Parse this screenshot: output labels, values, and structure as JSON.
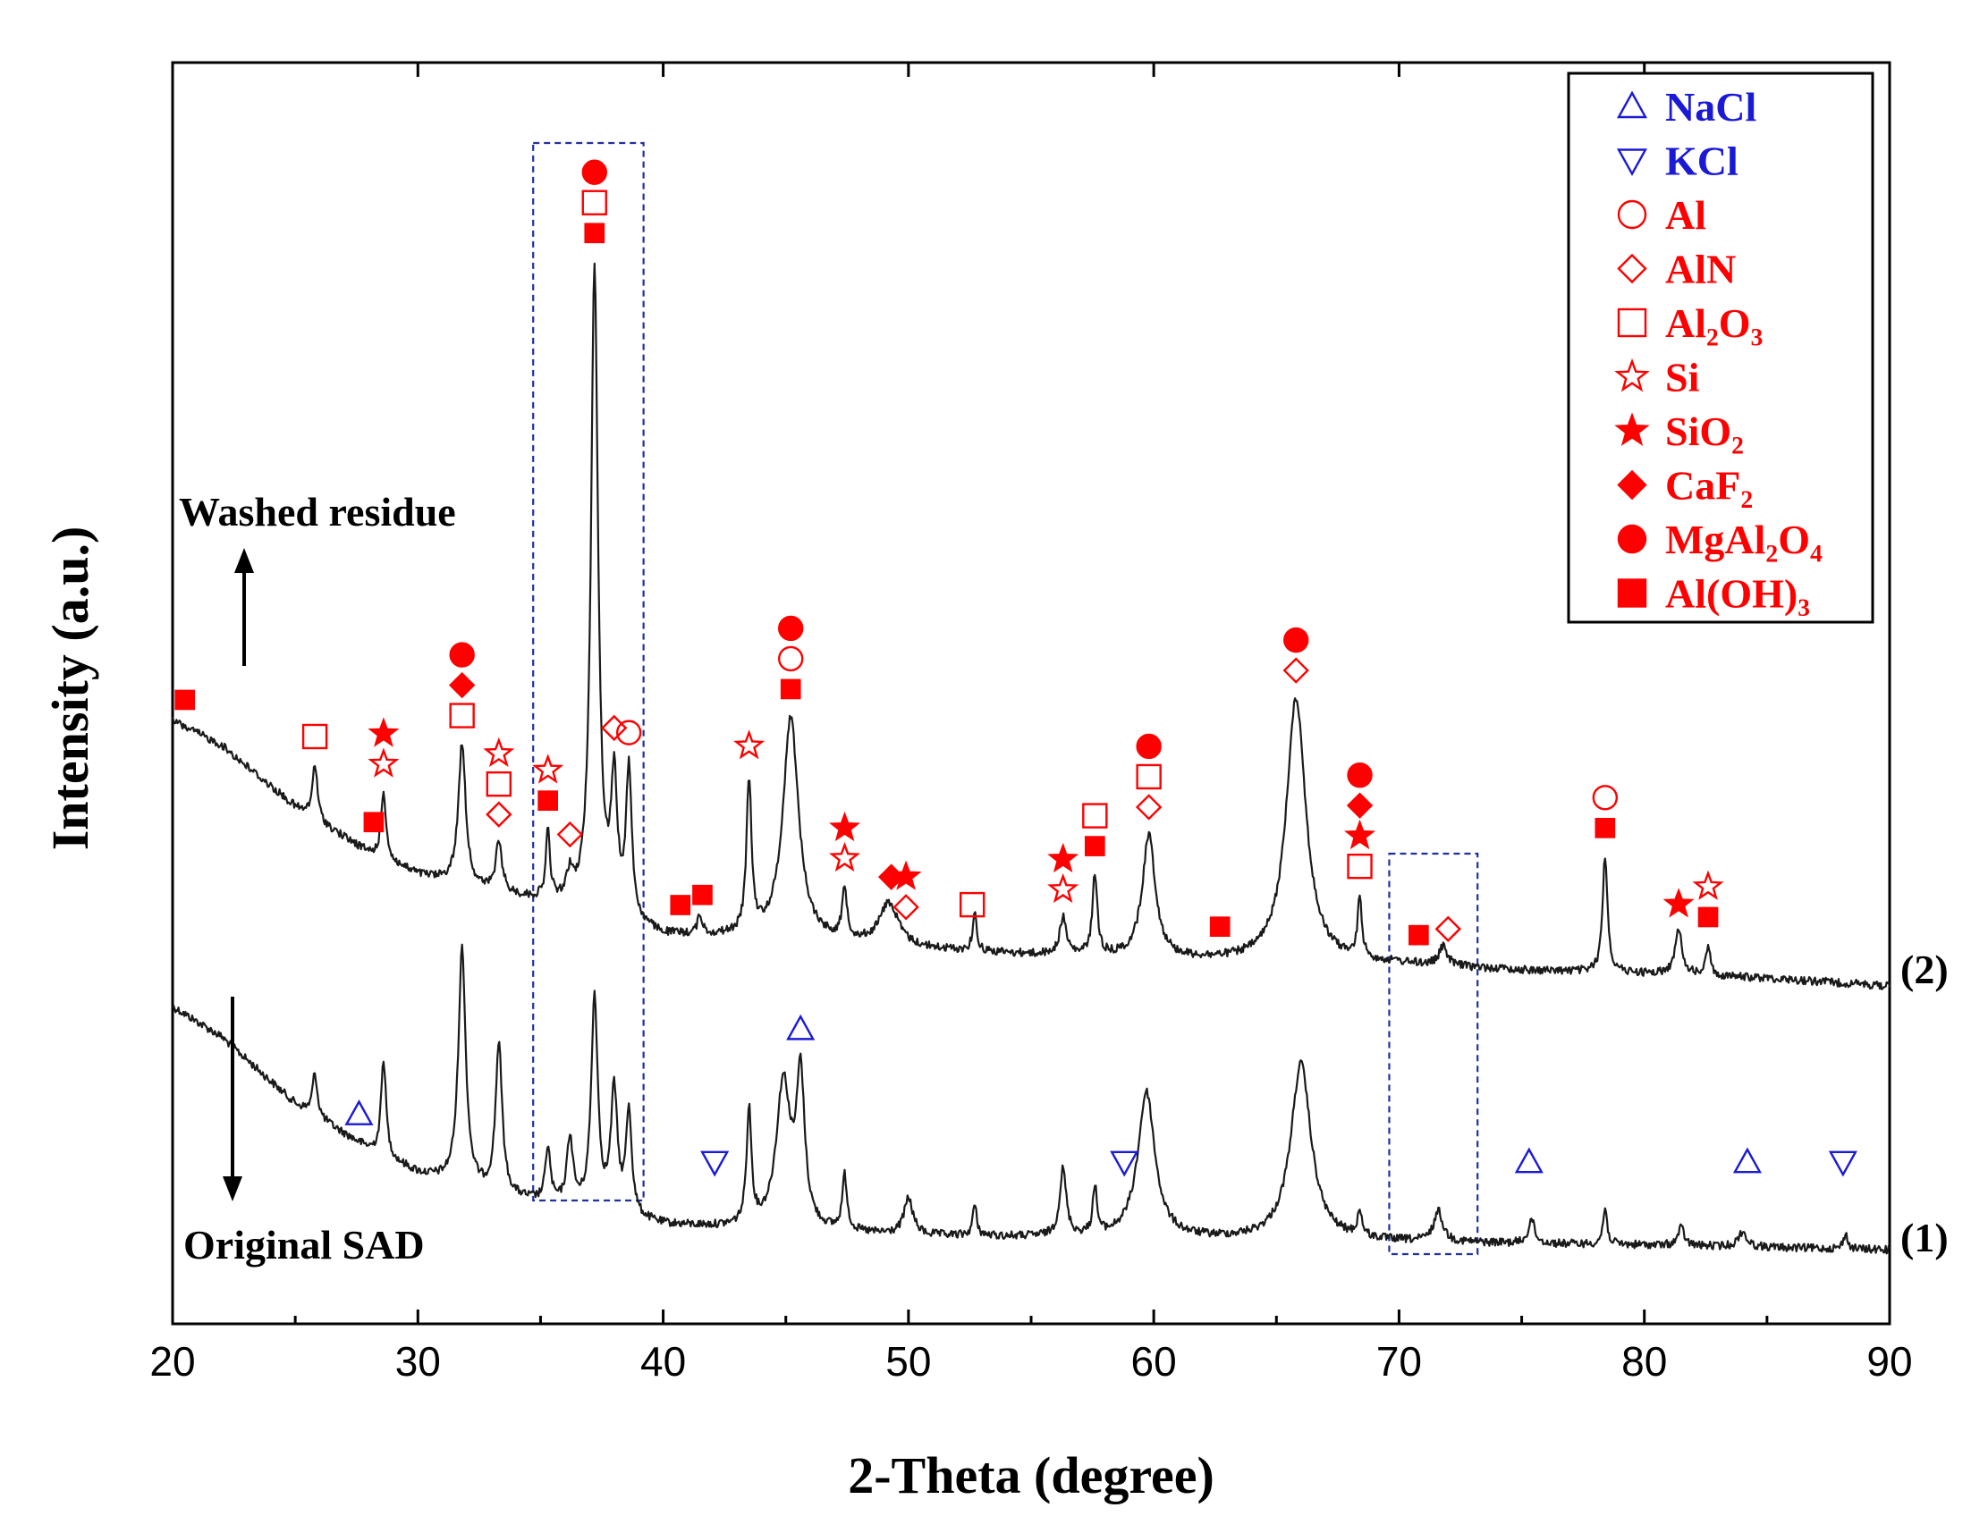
{
  "chart_data": {
    "type": "line",
    "xlabel": "2-Theta (degree)",
    "ylabel": "Intensity (a.u.)",
    "xlim": [
      20,
      90
    ],
    "xticks": [
      20,
      30,
      40,
      50,
      60,
      70,
      80,
      90
    ],
    "yticks_shown": false,
    "colors": {
      "trace": "#1a1a1a",
      "red": "#ff0000",
      "blue": "#1a1ad6",
      "box": "#2030a0"
    },
    "series": [
      {
        "name": "Original SAD",
        "id": "(1)",
        "background": [
          [
            20,
            0.82
          ],
          [
            22,
            0.72
          ],
          [
            25,
            0.5
          ],
          [
            28,
            0.35
          ],
          [
            30,
            0.27
          ],
          [
            33,
            0.2
          ],
          [
            36,
            0.16
          ],
          [
            40,
            0.1
          ],
          [
            45,
            0.08
          ],
          [
            50,
            0.065
          ],
          [
            60,
            0.055
          ],
          [
            70,
            0.045
          ],
          [
            80,
            0.035
          ],
          [
            90,
            0.02
          ]
        ],
        "peaks": [
          [
            25.8,
            0.14,
            0.12
          ],
          [
            28.6,
            0.32,
            0.12
          ],
          [
            31.8,
            0.78,
            0.18
          ],
          [
            33.3,
            0.5,
            0.16
          ],
          [
            35.3,
            0.18,
            0.12
          ],
          [
            36.2,
            0.22,
            0.15
          ],
          [
            37.2,
            0.7,
            0.16
          ],
          [
            38.0,
            0.4,
            0.16
          ],
          [
            38.6,
            0.34,
            0.14
          ],
          [
            43.5,
            0.38,
            0.12
          ],
          [
            44.9,
            0.48,
            0.35
          ],
          [
            45.6,
            0.48,
            0.2
          ],
          [
            47.4,
            0.18,
            0.12
          ],
          [
            50.0,
            0.12,
            0.22
          ],
          [
            52.7,
            0.1,
            0.1
          ],
          [
            56.3,
            0.22,
            0.16
          ],
          [
            57.6,
            0.16,
            0.1
          ],
          [
            59.7,
            0.48,
            0.42
          ],
          [
            66.0,
            0.58,
            0.5
          ],
          [
            68.4,
            0.08,
            0.12
          ],
          [
            71.6,
            0.1,
            0.22
          ],
          [
            75.4,
            0.08,
            0.15
          ],
          [
            78.4,
            0.12,
            0.1
          ],
          [
            81.5,
            0.06,
            0.15
          ],
          [
            84.0,
            0.05,
            0.2
          ],
          [
            88.2,
            0.05,
            0.1
          ]
        ]
      },
      {
        "name": "Washed residue",
        "id": "(2)",
        "background": [
          [
            20,
            0.88
          ],
          [
            22,
            0.8
          ],
          [
            25,
            0.6
          ],
          [
            28,
            0.45
          ],
          [
            30,
            0.38
          ],
          [
            33,
            0.32
          ],
          [
            36,
            0.28
          ],
          [
            40,
            0.18
          ],
          [
            45,
            0.17
          ],
          [
            50,
            0.14
          ],
          [
            55,
            0.12
          ],
          [
            60,
            0.105
          ],
          [
            65,
            0.095
          ],
          [
            70,
            0.09
          ],
          [
            75,
            0.07
          ],
          [
            80,
            0.06
          ],
          [
            85,
            0.045
          ],
          [
            90,
            0.02
          ]
        ],
        "peaks": [
          [
            25.8,
            0.18,
            0.12
          ],
          [
            28.6,
            0.22,
            0.12
          ],
          [
            31.8,
            0.46,
            0.18
          ],
          [
            33.3,
            0.16,
            0.16
          ],
          [
            35.3,
            0.22,
            0.1
          ],
          [
            36.2,
            0.08,
            0.15
          ],
          [
            37.2,
            2.1,
            0.17
          ],
          [
            38.0,
            0.42,
            0.15
          ],
          [
            38.6,
            0.48,
            0.14
          ],
          [
            41.5,
            0.06,
            0.12
          ],
          [
            43.5,
            0.5,
            0.12
          ],
          [
            45.2,
            0.72,
            0.38
          ],
          [
            47.4,
            0.16,
            0.12
          ],
          [
            49.2,
            0.14,
            0.45
          ],
          [
            52.7,
            0.12,
            0.1
          ],
          [
            56.3,
            0.12,
            0.16
          ],
          [
            57.6,
            0.26,
            0.12
          ],
          [
            59.8,
            0.4,
            0.32
          ],
          [
            65.8,
            0.86,
            0.48
          ],
          [
            68.4,
            0.2,
            0.1
          ],
          [
            71.8,
            0.06,
            0.2
          ],
          [
            78.4,
            0.38,
            0.12
          ],
          [
            81.4,
            0.14,
            0.18
          ],
          [
            82.6,
            0.1,
            0.1
          ]
        ]
      }
    ],
    "legend": {
      "position": "top-right",
      "entries": [
        {
          "symbol": "triangle-up-open",
          "label": "NaCl",
          "color": "#1a1ad6"
        },
        {
          "symbol": "triangle-down-open",
          "label": "KCl",
          "color": "#1a1ad6"
        },
        {
          "symbol": "circle-open",
          "label": "Al",
          "color": "#ff0000"
        },
        {
          "symbol": "diamond-open",
          "label": "AlN",
          "color": "#ff0000"
        },
        {
          "symbol": "square-open",
          "label": "Al₂O₃",
          "color": "#ff0000"
        },
        {
          "symbol": "star-open",
          "label": "Si",
          "color": "#ff0000"
        },
        {
          "symbol": "star-filled",
          "label": "SiO₂",
          "color": "#ff0000"
        },
        {
          "symbol": "diamond-filled",
          "label": "CaF₂",
          "color": "#ff0000"
        },
        {
          "symbol": "circle-filled",
          "label": "MgAl₂O₄",
          "color": "#ff0000"
        },
        {
          "symbol": "square-filled",
          "label": "Al(OH)₃",
          "color": "#ff0000"
        }
      ]
    },
    "phase_markers_washed_residue": [
      {
        "x": 20.5,
        "phases": [
          "Al(OH)3"
        ]
      },
      {
        "x": 25.8,
        "phases": [
          "Al2O3"
        ]
      },
      {
        "x": 28.2,
        "phases": [
          "Al(OH)3"
        ]
      },
      {
        "x": 28.6,
        "phases": [
          "Si",
          "SiO2"
        ]
      },
      {
        "x": 31.8,
        "phases": [
          "Al2O3",
          "CaF2",
          "MgAl2O4"
        ]
      },
      {
        "x": 33.3,
        "phases": [
          "AlN",
          "Al2O3",
          "Si"
        ]
      },
      {
        "x": 35.3,
        "phases": [
          "Al(OH)3",
          "Si"
        ]
      },
      {
        "x": 36.2,
        "phases": [
          "AlN"
        ]
      },
      {
        "x": 37.2,
        "phases": [
          "Al(OH)3",
          "Al2O3",
          "MgAl2O4"
        ]
      },
      {
        "x": 38.0,
        "phases": [
          "AlN"
        ]
      },
      {
        "x": 38.6,
        "phases": [
          "Al"
        ]
      },
      {
        "x": 40.7,
        "phases": [
          "Al(OH)3"
        ]
      },
      {
        "x": 41.6,
        "phases": [
          "Al(OH)3"
        ]
      },
      {
        "x": 43.5,
        "phases": [
          "Si"
        ]
      },
      {
        "x": 45.2,
        "phases": [
          "Al(OH)3",
          "Al",
          "MgAl2O4"
        ]
      },
      {
        "x": 47.4,
        "phases": [
          "Si",
          "SiO2"
        ]
      },
      {
        "x": 49.3,
        "phases": [
          "CaF2"
        ]
      },
      {
        "x": 49.9,
        "phases": [
          "AlN",
          "SiO2"
        ]
      },
      {
        "x": 52.6,
        "phases": [
          "Al2O3"
        ]
      },
      {
        "x": 56.3,
        "phases": [
          "Si",
          "SiO2"
        ]
      },
      {
        "x": 57.6,
        "phases": [
          "Al(OH)3",
          "Al2O3"
        ]
      },
      {
        "x": 59.8,
        "phases": [
          "AlN",
          "Al2O3",
          "MgAl2O4"
        ]
      },
      {
        "x": 62.7,
        "phases": [
          "Al(OH)3"
        ]
      },
      {
        "x": 65.8,
        "phases": [
          "AlN",
          "MgAl2O4"
        ]
      },
      {
        "x": 68.4,
        "phases": [
          "Al2O3",
          "SiO2",
          "CaF2",
          "MgAl2O4"
        ]
      },
      {
        "x": 70.8,
        "phases": [
          "Al(OH)3"
        ]
      },
      {
        "x": 72.0,
        "phases": [
          "AlN"
        ]
      },
      {
        "x": 78.4,
        "phases": [
          "Al(OH)3",
          "Al"
        ]
      },
      {
        "x": 81.4,
        "phases": [
          "SiO2"
        ]
      },
      {
        "x": 82.6,
        "phases": [
          "Al(OH)3",
          "Si"
        ]
      }
    ],
    "phase_markers_original_SAD": [
      {
        "x": 27.6,
        "phases": [
          "NaCl"
        ]
      },
      {
        "x": 42.1,
        "phases": [
          "KCl"
        ]
      },
      {
        "x": 45.6,
        "phases": [
          "NaCl"
        ]
      },
      {
        "x": 58.8,
        "phases": [
          "KCl"
        ]
      },
      {
        "x": 75.3,
        "phases": [
          "NaCl"
        ]
      },
      {
        "x": 84.2,
        "phases": [
          "NaCl"
        ]
      },
      {
        "x": 88.1,
        "phases": [
          "KCl"
        ]
      }
    ],
    "highlight_boxes": [
      {
        "x_range": [
          34.7,
          39.2
        ],
        "style": "dashed"
      },
      {
        "x_range": [
          69.6,
          73.2
        ],
        "style": "dashed"
      }
    ],
    "annotations": {
      "washed_residue_label": "Washed residue",
      "original_label": "Original SAD",
      "curve2_id": "(2)",
      "curve1_id": "(1)"
    }
  }
}
